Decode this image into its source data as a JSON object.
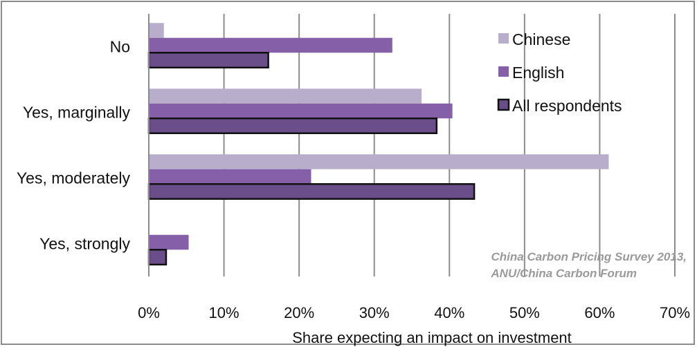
{
  "chart_data": {
    "type": "bar",
    "orientation": "horizontal",
    "title": "",
    "xlabel": "Share expecting an impact on investment",
    "ylabel": "",
    "xlim": [
      0,
      70
    ],
    "x_ticks": [
      "0%",
      "10%",
      "20%",
      "30%",
      "40%",
      "50%",
      "60%",
      "70%"
    ],
    "categories": [
      "No",
      "Yes, marginally",
      "Yes, moderately",
      "Yes, strongly"
    ],
    "series": [
      {
        "name": "Chinese",
        "color": "#b8aecc",
        "values": [
          2,
          36.3,
          61.2,
          0
        ]
      },
      {
        "name": "English",
        "color": "#8560a8",
        "values": [
          32.4,
          40.4,
          21.6,
          5.3
        ]
      },
      {
        "name": "All respondents",
        "color": "#6a4e8a",
        "values": [
          15.9,
          38.3,
          43.3,
          2.3
        ]
      }
    ],
    "grid": true,
    "legend_position": "top-right",
    "annotation": [
      "China Carbon Pricing Survey 2013,",
      "ANU/China Carbon Forum"
    ]
  }
}
